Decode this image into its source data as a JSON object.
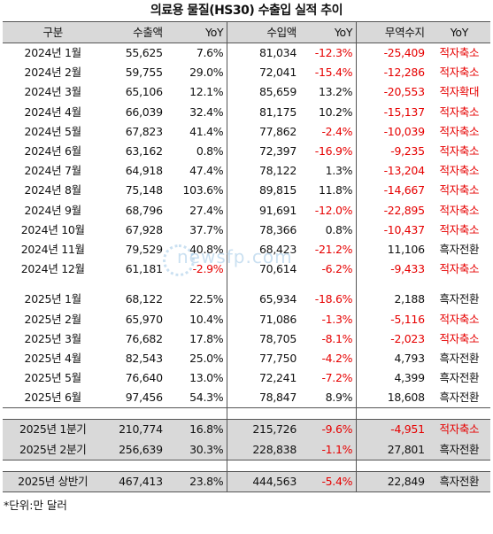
{
  "title": "의료용 물질(HS30) 수출입 실적 추이",
  "headers": [
    "구분",
    "수출액",
    "YoY",
    "수입액",
    "YoY",
    "무역수지",
    "YoY"
  ],
  "monthly_2024": [
    {
      "label": "2024년 1월",
      "exp": "55,625",
      "exp_yoy": "7.6%",
      "imp": "81,034",
      "imp_yoy": "-12.3%",
      "bal": "-25,409",
      "bal_yoy": "적자축소"
    },
    {
      "label": "2024년 2월",
      "exp": "59,755",
      "exp_yoy": "29.0%",
      "imp": "72,041",
      "imp_yoy": "-15.4%",
      "bal": "-12,286",
      "bal_yoy": "적자축소"
    },
    {
      "label": "2024년 3월",
      "exp": "65,106",
      "exp_yoy": "12.1%",
      "imp": "85,659",
      "imp_yoy": "13.2%",
      "bal": "-20,553",
      "bal_yoy": "적자확대"
    },
    {
      "label": "2024년 4월",
      "exp": "66,039",
      "exp_yoy": "32.4%",
      "imp": "81,175",
      "imp_yoy": "10.2%",
      "bal": "-15,137",
      "bal_yoy": "적자축소"
    },
    {
      "label": "2024년 5월",
      "exp": "67,823",
      "exp_yoy": "41.4%",
      "imp": "77,862",
      "imp_yoy": "-2.4%",
      "bal": "-10,039",
      "bal_yoy": "적자축소"
    },
    {
      "label": "2024년 6월",
      "exp": "63,162",
      "exp_yoy": "0.8%",
      "imp": "72,397",
      "imp_yoy": "-16.9%",
      "bal": "-9,235",
      "bal_yoy": "적자축소"
    },
    {
      "label": "2024년 7월",
      "exp": "64,918",
      "exp_yoy": "47.4%",
      "imp": "78,122",
      "imp_yoy": "1.3%",
      "bal": "-13,204",
      "bal_yoy": "적자축소"
    },
    {
      "label": "2024년 8월",
      "exp": "75,148",
      "exp_yoy": "103.6%",
      "imp": "89,815",
      "imp_yoy": "11.8%",
      "bal": "-14,667",
      "bal_yoy": "적자축소"
    },
    {
      "label": "2024년 9월",
      "exp": "68,796",
      "exp_yoy": "27.4%",
      "imp": "91,691",
      "imp_yoy": "-12.0%",
      "bal": "-22,895",
      "bal_yoy": "적자축소"
    },
    {
      "label": "2024년 10월",
      "exp": "67,928",
      "exp_yoy": "37.7%",
      "imp": "78,366",
      "imp_yoy": "0.8%",
      "bal": "-10,437",
      "bal_yoy": "적자축소"
    },
    {
      "label": "2024년 11월",
      "exp": "79,529",
      "exp_yoy": "40.8%",
      "imp": "68,423",
      "imp_yoy": "-21.2%",
      "bal": "11,106",
      "bal_yoy": "흑자전환"
    },
    {
      "label": "2024년 12월",
      "exp": "61,181",
      "exp_yoy": "-2.9%",
      "imp": "70,614",
      "imp_yoy": "-6.2%",
      "bal": "-9,433",
      "bal_yoy": "적자축소"
    }
  ],
  "monthly_2025": [
    {
      "label": "2025년 1월",
      "exp": "68,122",
      "exp_yoy": "22.5%",
      "imp": "65,934",
      "imp_yoy": "-18.6%",
      "bal": "2,188",
      "bal_yoy": "흑자전환"
    },
    {
      "label": "2025년 2월",
      "exp": "65,970",
      "exp_yoy": "10.4%",
      "imp": "71,086",
      "imp_yoy": "-1.3%",
      "bal": "-5,116",
      "bal_yoy": "적자축소"
    },
    {
      "label": "2025년 3월",
      "exp": "76,682",
      "exp_yoy": "17.8%",
      "imp": "78,705",
      "imp_yoy": "-8.1%",
      "bal": "-2,023",
      "bal_yoy": "적자축소"
    },
    {
      "label": "2025년 4월",
      "exp": "82,543",
      "exp_yoy": "25.0%",
      "imp": "77,750",
      "imp_yoy": "-4.2%",
      "bal": "4,793",
      "bal_yoy": "흑자전환"
    },
    {
      "label": "2025년 5월",
      "exp": "76,640",
      "exp_yoy": "13.0%",
      "imp": "72,241",
      "imp_yoy": "-7.2%",
      "bal": "4,399",
      "bal_yoy": "흑자전환"
    },
    {
      "label": "2025년 6월",
      "exp": "97,456",
      "exp_yoy": "54.3%",
      "imp": "78,847",
      "imp_yoy": "8.9%",
      "bal": "18,608",
      "bal_yoy": "흑자전환"
    }
  ],
  "quarterly": [
    {
      "label": "2025년 1분기",
      "exp": "210,774",
      "exp_yoy": "16.8%",
      "imp": "215,726",
      "imp_yoy": "-9.6%",
      "bal": "-4,951",
      "bal_yoy": "적자축소"
    },
    {
      "label": "2025년 2분기",
      "exp": "256,639",
      "exp_yoy": "30.3%",
      "imp": "228,838",
      "imp_yoy": "-1.1%",
      "bal": "27,801",
      "bal_yoy": "흑자전환"
    }
  ],
  "half": {
    "label": "2025년 상반기",
    "exp": "467,413",
    "exp_yoy": "23.8%",
    "imp": "444,563",
    "imp_yoy": "-5.4%",
    "bal": "22,849",
    "bal_yoy": "흑자전환"
  },
  "note": "*단위:만 달러",
  "watermark": "newsfp.com",
  "colors": {
    "negative": "#e60000",
    "header_bg": "#d9d9d9"
  }
}
